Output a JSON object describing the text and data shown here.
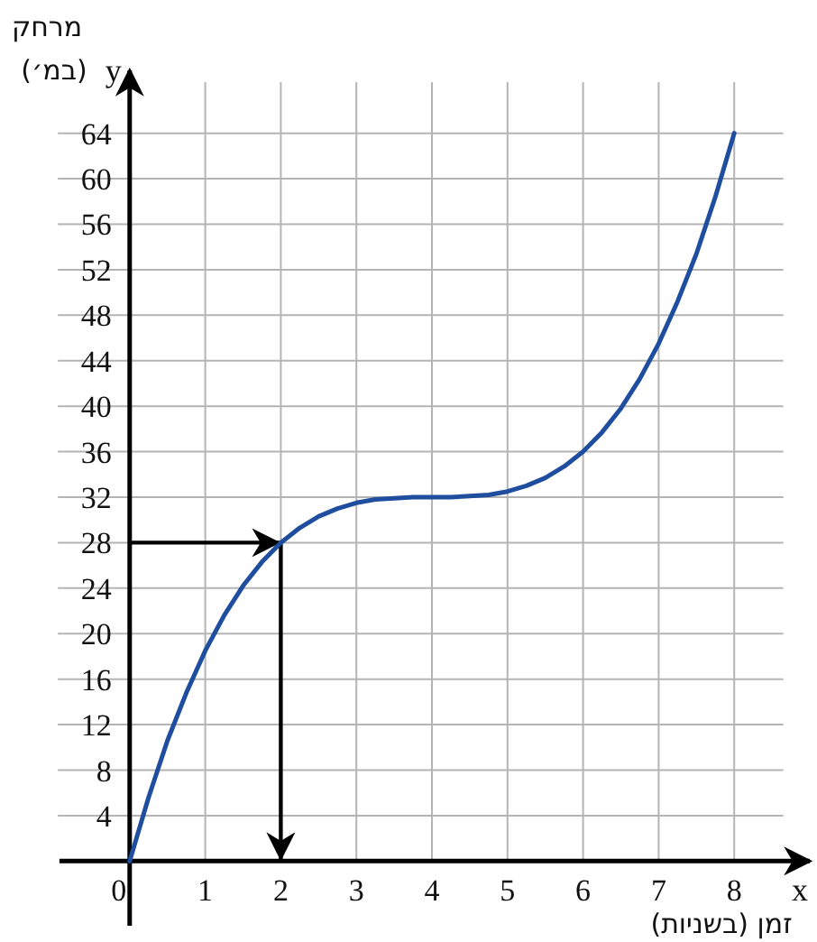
{
  "chart_data": {
    "type": "line",
    "xlabel": "זמן (בשניות)",
    "ylabel": "מרחק (במ׳)",
    "annotations": [
      "x",
      "y"
    ],
    "x": [
      0,
      0.25,
      0.5,
      0.75,
      1,
      1.25,
      1.5,
      1.75,
      2,
      2.25,
      2.5,
      2.75,
      3,
      3.25,
      3.5,
      3.75,
      4,
      4.25,
      4.5,
      4.75,
      5,
      5.25,
      5.5,
      5.75,
      6,
      6.25,
      6.5,
      6.75,
      7,
      7.25,
      7.5,
      7.75,
      8
    ],
    "series": [
      {
        "color": "#1f4e9f",
        "values": [
          0,
          5.6,
          10.6,
          14.8,
          18.5,
          21.6,
          24.2,
          26.3,
          28,
          29.3,
          30.3,
          31,
          31.5,
          31.8,
          31.9,
          32,
          32,
          32,
          32.1,
          32.2,
          32.5,
          33,
          33.7,
          34.7,
          36,
          37.7,
          39.8,
          42.4,
          45.5,
          49.2,
          53.4,
          58.4,
          64
        ]
      }
    ],
    "xlim": [
      -1,
      9
    ],
    "ylim": [
      -6,
      70
    ],
    "xticks": [
      0,
      1,
      2,
      3,
      4,
      5,
      6,
      7,
      8
    ],
    "yticks": [
      4,
      8,
      12,
      16,
      20,
      24,
      28,
      32,
      36,
      40,
      44,
      48,
      52,
      56,
      60,
      64
    ],
    "grid": true,
    "marker": "none",
    "line_style": "solid",
    "ref_lines": [
      {
        "axis": "y",
        "value": 28,
        "color": "#000000"
      },
      {
        "axis": "x",
        "value": 2,
        "color": "#000000"
      }
    ]
  }
}
